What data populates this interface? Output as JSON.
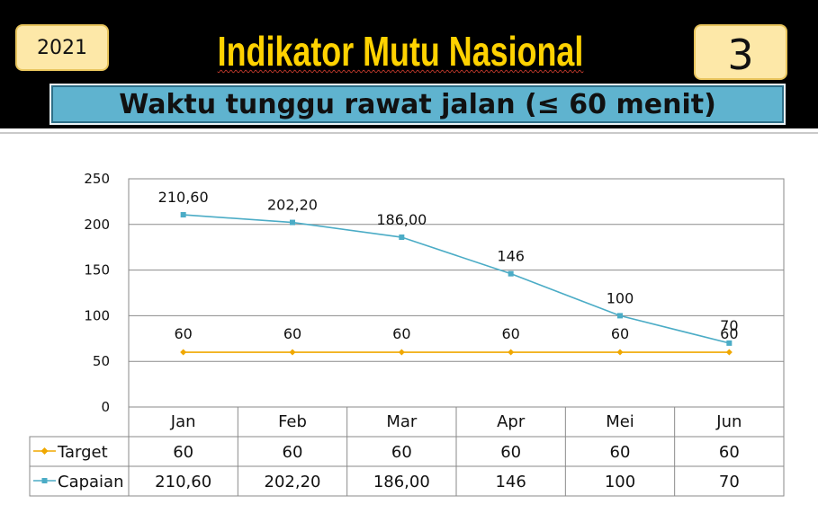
{
  "header": {
    "year": "2021",
    "title": "Indikator Mutu Nasional",
    "number": "3",
    "subtitle": "Waktu tunggu rawat jalan (≤ 60 menit)"
  },
  "colors": {
    "banner": "#000000",
    "title": "#ffd200",
    "badge": "#fde8a8",
    "subtitle_bg": "#5fb3cf",
    "target": "#f0a800",
    "capaian": "#4bacc6"
  },
  "chart_data": {
    "type": "line",
    "categories": [
      "Jan",
      "Feb",
      "Mar",
      "Apr",
      "Mei",
      "Jun"
    ],
    "ylim": [
      0,
      250
    ],
    "yticks": [
      "0",
      "50",
      "100",
      "150",
      "200",
      "250"
    ],
    "grid": true,
    "legend": "data-table",
    "series": [
      {
        "name": "Target",
        "values": [
          60,
          60,
          60,
          60,
          60,
          60
        ],
        "labels": [
          "60",
          "60",
          "60",
          "60",
          "60",
          "60"
        ],
        "marker": "diamond"
      },
      {
        "name": "Capaian",
        "values": [
          210.6,
          202.2,
          186,
          146,
          100,
          70
        ],
        "labels": [
          "210,60",
          "202,20",
          "186,00",
          "146",
          "100",
          "70"
        ],
        "marker": "square"
      }
    ]
  }
}
